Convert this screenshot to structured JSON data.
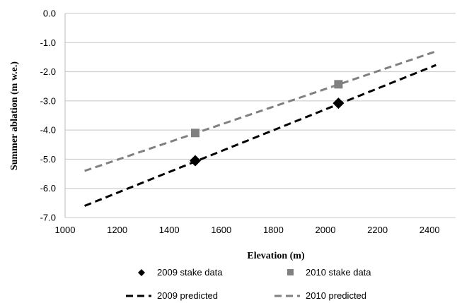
{
  "chart_data": {
    "type": "scatter",
    "xlabel": "Elevation (m)",
    "ylabel": "Summer ablation (m w.e.)",
    "xlim": [
      1000,
      2500
    ],
    "ylim": [
      -7.0,
      0.0
    ],
    "x_ticks": [
      "1000",
      "1200",
      "1400",
      "1600",
      "1800",
      "2000",
      "2200",
      "2400"
    ],
    "y_ticks": [
      "0.0",
      "-1.0",
      "-2.0",
      "-3.0",
      "-4.0",
      "-5.0",
      "-6.0",
      "-7.0"
    ],
    "grid": "horizontal",
    "legend_position": "bottom",
    "series": [
      {
        "name": "2009 stake data",
        "kind": "points",
        "marker": "diamond",
        "color": "#000000",
        "points": [
          [
            1500,
            -5.05
          ],
          [
            2050,
            -3.08
          ]
        ]
      },
      {
        "name": "2010 stake data",
        "kind": "points",
        "marker": "square",
        "color": "#808080",
        "points": [
          [
            1500,
            -4.1
          ],
          [
            2050,
            -2.43
          ]
        ]
      },
      {
        "name": "2009 predicted",
        "kind": "line",
        "style": "dashed",
        "color": "#000000",
        "points": [
          [
            1075,
            -6.6
          ],
          [
            2425,
            -1.77
          ]
        ]
      },
      {
        "name": "2010 predicted",
        "kind": "line",
        "style": "dashed",
        "color": "#808080",
        "points": [
          [
            1075,
            -5.4
          ],
          [
            2425,
            -1.3
          ]
        ]
      }
    ]
  }
}
